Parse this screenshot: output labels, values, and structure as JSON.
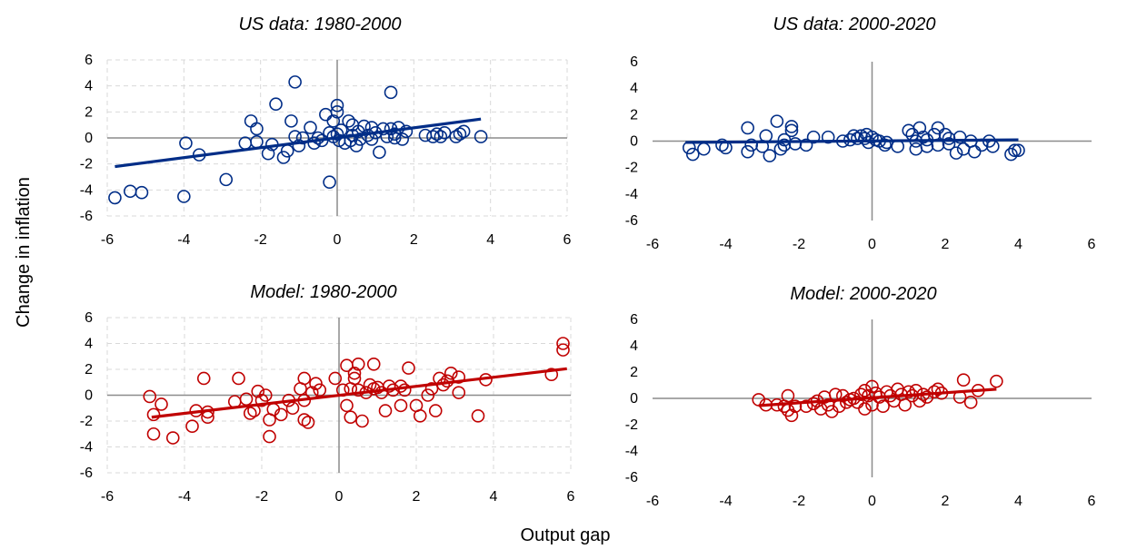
{
  "figure": {
    "ylabel": "Change in inflation",
    "xlabel": "Output gap"
  },
  "chart_data": [
    {
      "type": "scatter",
      "title": "US data: 1980-2000",
      "xlim": [
        -6,
        6
      ],
      "ylim": [
        -6,
        6
      ],
      "xticks": [
        -6,
        -4,
        -2,
        0,
        2,
        4,
        6
      ],
      "yticks": [
        -6,
        -4,
        -2,
        0,
        2,
        4,
        6
      ],
      "grid": true,
      "color": "#002d87",
      "trendline": {
        "x": [
          -5.8,
          3.75
        ],
        "y": [
          -2.2,
          1.45
        ]
      },
      "points": [
        {
          "x": -5.8,
          "y": -4.6
        },
        {
          "x": -5.4,
          "y": -4.1
        },
        {
          "x": -5.1,
          "y": -4.2
        },
        {
          "x": -4.0,
          "y": -4.5
        },
        {
          "x": -3.95,
          "y": -0.4
        },
        {
          "x": -3.6,
          "y": -1.3
        },
        {
          "x": -2.9,
          "y": -3.2
        },
        {
          "x": -2.4,
          "y": -0.4
        },
        {
          "x": -2.25,
          "y": 1.3
        },
        {
          "x": -2.1,
          "y": 0.7
        },
        {
          "x": -2.1,
          "y": -0.3
        },
        {
          "x": -1.8,
          "y": -1.2
        },
        {
          "x": -1.7,
          "y": -0.5
        },
        {
          "x": -1.6,
          "y": 2.6
        },
        {
          "x": -1.4,
          "y": -1.5
        },
        {
          "x": -1.3,
          "y": -1.0
        },
        {
          "x": -1.2,
          "y": 1.3
        },
        {
          "x": -1.1,
          "y": 4.3
        },
        {
          "x": -1.1,
          "y": 0.1
        },
        {
          "x": -1.0,
          "y": -0.6
        },
        {
          "x": -0.9,
          "y": 0.0
        },
        {
          "x": -0.7,
          "y": 0.8
        },
        {
          "x": -0.6,
          "y": -0.4
        },
        {
          "x": -0.5,
          "y": 0.0
        },
        {
          "x": -0.4,
          "y": -0.2
        },
        {
          "x": -0.3,
          "y": 1.8
        },
        {
          "x": -0.2,
          "y": -3.4
        },
        {
          "x": -0.2,
          "y": 0.4
        },
        {
          "x": -0.1,
          "y": 1.3
        },
        {
          "x": -0.1,
          "y": 0.1
        },
        {
          "x": 0.0,
          "y": 2.5
        },
        {
          "x": 0.0,
          "y": 2.0
        },
        {
          "x": 0.0,
          "y": 0.3
        },
        {
          "x": 0.05,
          "y": -0.2
        },
        {
          "x": 0.1,
          "y": 0.6
        },
        {
          "x": 0.2,
          "y": -0.4
        },
        {
          "x": 0.3,
          "y": 1.3
        },
        {
          "x": 0.35,
          "y": -0.2
        },
        {
          "x": 0.4,
          "y": 1.0
        },
        {
          "x": 0.4,
          "y": 0.2
        },
        {
          "x": 0.5,
          "y": -0.6
        },
        {
          "x": 0.55,
          "y": 0.5
        },
        {
          "x": 0.6,
          "y": -0.1
        },
        {
          "x": 0.7,
          "y": 0.9
        },
        {
          "x": 0.8,
          "y": 0.2
        },
        {
          "x": 0.9,
          "y": 0.8
        },
        {
          "x": 0.9,
          "y": -0.1
        },
        {
          "x": 1.0,
          "y": 0.4
        },
        {
          "x": 1.1,
          "y": -1.1
        },
        {
          "x": 1.2,
          "y": 0.7
        },
        {
          "x": 1.3,
          "y": 0.1
        },
        {
          "x": 1.4,
          "y": 3.5
        },
        {
          "x": 1.4,
          "y": 0.7
        },
        {
          "x": 1.5,
          "y": 0.3
        },
        {
          "x": 1.5,
          "y": 0.0
        },
        {
          "x": 1.6,
          "y": 0.8
        },
        {
          "x": 1.7,
          "y": -0.1
        },
        {
          "x": 1.8,
          "y": 0.5
        },
        {
          "x": 2.3,
          "y": 0.2
        },
        {
          "x": 2.5,
          "y": 0.1
        },
        {
          "x": 2.6,
          "y": 0.3
        },
        {
          "x": 2.7,
          "y": 0.1
        },
        {
          "x": 2.8,
          "y": 0.4
        },
        {
          "x": 3.1,
          "y": 0.1
        },
        {
          "x": 3.2,
          "y": 0.3
        },
        {
          "x": 3.3,
          "y": 0.5
        },
        {
          "x": 3.75,
          "y": 0.1
        }
      ]
    },
    {
      "type": "scatter",
      "title": "US data: 2000-2020",
      "xlim": [
        -6,
        6
      ],
      "ylim": [
        -6,
        6
      ],
      "xticks": [
        -6,
        -4,
        -2,
        0,
        2,
        4,
        6
      ],
      "yticks": [
        -6,
        -4,
        -2,
        0,
        2,
        4,
        6
      ],
      "grid": false,
      "color": "#002d87",
      "trendline": {
        "x": [
          -5.1,
          4.0
        ],
        "y": [
          -0.1,
          0.1
        ]
      },
      "points": [
        {
          "x": -5.0,
          "y": -0.5
        },
        {
          "x": -4.9,
          "y": -1.0
        },
        {
          "x": -4.6,
          "y": -0.6
        },
        {
          "x": -4.1,
          "y": -0.3
        },
        {
          "x": -4.0,
          "y": -0.5
        },
        {
          "x": -3.4,
          "y": 1.0
        },
        {
          "x": -3.4,
          "y": -0.8
        },
        {
          "x": -3.3,
          "y": -0.3
        },
        {
          "x": -3.0,
          "y": -0.4
        },
        {
          "x": -2.9,
          "y": 0.4
        },
        {
          "x": -2.8,
          "y": -1.1
        },
        {
          "x": -2.6,
          "y": 1.5
        },
        {
          "x": -2.5,
          "y": -0.6
        },
        {
          "x": -2.4,
          "y": -0.3
        },
        {
          "x": -2.4,
          "y": 0.1
        },
        {
          "x": -2.2,
          "y": 1.1
        },
        {
          "x": -2.2,
          "y": 0.8
        },
        {
          "x": -2.1,
          "y": -0.2
        },
        {
          "x": -1.8,
          "y": -0.3
        },
        {
          "x": -1.6,
          "y": 0.3
        },
        {
          "x": -1.2,
          "y": 0.3
        },
        {
          "x": -0.8,
          "y": 0.0
        },
        {
          "x": -0.6,
          "y": 0.1
        },
        {
          "x": -0.5,
          "y": 0.4
        },
        {
          "x": -0.4,
          "y": 0.2
        },
        {
          "x": -0.3,
          "y": 0.4
        },
        {
          "x": -0.2,
          "y": 0.2
        },
        {
          "x": -0.15,
          "y": 0.5
        },
        {
          "x": -0.1,
          "y": -0.1
        },
        {
          "x": 0.0,
          "y": 0.3
        },
        {
          "x": 0.1,
          "y": 0.1
        },
        {
          "x": 0.2,
          "y": 0.0
        },
        {
          "x": 0.35,
          "y": -0.3
        },
        {
          "x": 0.4,
          "y": -0.1
        },
        {
          "x": 0.7,
          "y": -0.4
        },
        {
          "x": 1.0,
          "y": 0.8
        },
        {
          "x": 1.1,
          "y": 0.5
        },
        {
          "x": 1.2,
          "y": -0.6
        },
        {
          "x": 1.2,
          "y": 0.0
        },
        {
          "x": 1.3,
          "y": 1.0
        },
        {
          "x": 1.4,
          "y": 0.3
        },
        {
          "x": 1.5,
          "y": -0.4
        },
        {
          "x": 1.5,
          "y": 0.1
        },
        {
          "x": 1.7,
          "y": 0.5
        },
        {
          "x": 1.8,
          "y": 1.0
        },
        {
          "x": 1.8,
          "y": -0.3
        },
        {
          "x": 2.0,
          "y": 0.5
        },
        {
          "x": 2.1,
          "y": 0.2
        },
        {
          "x": 2.1,
          "y": -0.2
        },
        {
          "x": 2.3,
          "y": -0.9
        },
        {
          "x": 2.4,
          "y": 0.3
        },
        {
          "x": 2.5,
          "y": -0.6
        },
        {
          "x": 2.7,
          "y": 0.0
        },
        {
          "x": 2.8,
          "y": -0.8
        },
        {
          "x": 3.0,
          "y": -0.3
        },
        {
          "x": 3.2,
          "y": 0.0
        },
        {
          "x": 3.3,
          "y": -0.4
        },
        {
          "x": 3.8,
          "y": -1.0
        },
        {
          "x": 3.9,
          "y": -0.7
        },
        {
          "x": 4.0,
          "y": -0.7
        }
      ]
    },
    {
      "type": "scatter",
      "title": "Model: 1980-2000",
      "xlim": [
        -6,
        6
      ],
      "ylim": [
        -6,
        6
      ],
      "xticks": [
        -6,
        -4,
        -2,
        0,
        2,
        4,
        6
      ],
      "yticks": [
        -6,
        -4,
        -2,
        0,
        2,
        4,
        6
      ],
      "grid": true,
      "color": "#c00000",
      "trendline": {
        "x": [
          -4.85,
          5.9
        ],
        "y": [
          -1.7,
          2.05
        ]
      },
      "points": [
        {
          "x": -4.9,
          "y": -0.1
        },
        {
          "x": -4.8,
          "y": -1.5
        },
        {
          "x": -4.8,
          "y": -3.0
        },
        {
          "x": -4.6,
          "y": -0.7
        },
        {
          "x": -4.3,
          "y": -3.3
        },
        {
          "x": -3.8,
          "y": -2.4
        },
        {
          "x": -3.7,
          "y": -1.2
        },
        {
          "x": -3.5,
          "y": 1.3
        },
        {
          "x": -3.4,
          "y": -1.3
        },
        {
          "x": -3.4,
          "y": -1.7
        },
        {
          "x": -2.7,
          "y": -0.5
        },
        {
          "x": -2.6,
          "y": 1.3
        },
        {
          "x": -2.4,
          "y": -0.3
        },
        {
          "x": -2.3,
          "y": -1.4
        },
        {
          "x": -2.2,
          "y": -1.2
        },
        {
          "x": -2.1,
          "y": 0.3
        },
        {
          "x": -2.0,
          "y": -0.4
        },
        {
          "x": -1.9,
          "y": 0.0
        },
        {
          "x": -1.8,
          "y": -1.9
        },
        {
          "x": -1.8,
          "y": -3.2
        },
        {
          "x": -1.7,
          "y": -1.1
        },
        {
          "x": -1.5,
          "y": -1.5
        },
        {
          "x": -1.3,
          "y": -0.4
        },
        {
          "x": -1.2,
          "y": -1.0
        },
        {
          "x": -1.0,
          "y": 0.5
        },
        {
          "x": -0.9,
          "y": 1.3
        },
        {
          "x": -0.9,
          "y": -0.4
        },
        {
          "x": -0.9,
          "y": -1.9
        },
        {
          "x": -0.8,
          "y": -2.1
        },
        {
          "x": -0.7,
          "y": 0.2
        },
        {
          "x": -0.6,
          "y": 0.9
        },
        {
          "x": -0.5,
          "y": 0.4
        },
        {
          "x": -0.1,
          "y": 1.3
        },
        {
          "x": 0.1,
          "y": 0.4
        },
        {
          "x": 0.2,
          "y": 2.3
        },
        {
          "x": 0.2,
          "y": -0.8
        },
        {
          "x": 0.3,
          "y": 0.5
        },
        {
          "x": 0.3,
          "y": -1.7
        },
        {
          "x": 0.4,
          "y": 1.7
        },
        {
          "x": 0.4,
          "y": 1.3
        },
        {
          "x": 0.5,
          "y": 2.4
        },
        {
          "x": 0.5,
          "y": 0.4
        },
        {
          "x": 0.6,
          "y": -2.0
        },
        {
          "x": 0.7,
          "y": 0.2
        },
        {
          "x": 0.8,
          "y": 0.8
        },
        {
          "x": 0.9,
          "y": 0.5
        },
        {
          "x": 0.9,
          "y": 2.4
        },
        {
          "x": 1.0,
          "y": 0.6
        },
        {
          "x": 1.1,
          "y": 0.2
        },
        {
          "x": 1.2,
          "y": -1.2
        },
        {
          "x": 1.3,
          "y": 0.7
        },
        {
          "x": 1.4,
          "y": 0.4
        },
        {
          "x": 1.6,
          "y": 0.7
        },
        {
          "x": 1.6,
          "y": -0.8
        },
        {
          "x": 1.7,
          "y": 0.4
        },
        {
          "x": 1.8,
          "y": 2.1
        },
        {
          "x": 2.0,
          "y": -0.8
        },
        {
          "x": 2.1,
          "y": -1.6
        },
        {
          "x": 2.3,
          "y": 0.0
        },
        {
          "x": 2.4,
          "y": 0.5
        },
        {
          "x": 2.5,
          "y": -1.2
        },
        {
          "x": 2.6,
          "y": 1.3
        },
        {
          "x": 2.7,
          "y": 0.8
        },
        {
          "x": 2.8,
          "y": 1.1
        },
        {
          "x": 2.9,
          "y": 1.7
        },
        {
          "x": 3.1,
          "y": 1.4
        },
        {
          "x": 3.1,
          "y": 0.2
        },
        {
          "x": 3.6,
          "y": -1.6
        },
        {
          "x": 3.8,
          "y": 1.2
        },
        {
          "x": 5.5,
          "y": 1.6
        },
        {
          "x": 5.8,
          "y": 4.0
        },
        {
          "x": 5.8,
          "y": 3.5
        }
      ]
    },
    {
      "type": "scatter",
      "title": "Model: 2000-2020",
      "xlim": [
        -6,
        6
      ],
      "ylim": [
        -6,
        6
      ],
      "xticks": [
        -6,
        -4,
        -2,
        0,
        2,
        4,
        6
      ],
      "yticks": [
        -6,
        -4,
        -2,
        0,
        2,
        4,
        6
      ],
      "grid": false,
      "color": "#c00000",
      "trendline": {
        "x": [
          -3.1,
          3.4
        ],
        "y": [
          -0.55,
          0.7
        ]
      },
      "points": [
        {
          "x": -3.1,
          "y": -0.1
        },
        {
          "x": -2.9,
          "y": -0.5
        },
        {
          "x": -2.6,
          "y": -0.5
        },
        {
          "x": -2.4,
          "y": -0.6
        },
        {
          "x": -2.3,
          "y": 0.2
        },
        {
          "x": -2.3,
          "y": -0.9
        },
        {
          "x": -2.2,
          "y": -1.3
        },
        {
          "x": -2.1,
          "y": -0.6
        },
        {
          "x": -1.8,
          "y": -0.6
        },
        {
          "x": -1.6,
          "y": -0.4
        },
        {
          "x": -1.5,
          "y": -0.2
        },
        {
          "x": -1.4,
          "y": -0.8
        },
        {
          "x": -1.3,
          "y": 0.1
        },
        {
          "x": -1.2,
          "y": -0.5
        },
        {
          "x": -1.1,
          "y": -1.0
        },
        {
          "x": -1.0,
          "y": 0.3
        },
        {
          "x": -0.9,
          "y": -0.6
        },
        {
          "x": -0.8,
          "y": 0.2
        },
        {
          "x": -0.7,
          "y": -0.3
        },
        {
          "x": -0.6,
          "y": -0.1
        },
        {
          "x": -0.5,
          "y": 0.0
        },
        {
          "x": -0.4,
          "y": -0.3
        },
        {
          "x": -0.3,
          "y": 0.3
        },
        {
          "x": -0.2,
          "y": 0.6
        },
        {
          "x": -0.2,
          "y": -0.8
        },
        {
          "x": -0.1,
          "y": 0.2
        },
        {
          "x": 0.0,
          "y": -0.5
        },
        {
          "x": 0.0,
          "y": 0.9
        },
        {
          "x": 0.1,
          "y": 0.4
        },
        {
          "x": 0.2,
          "y": 0.1
        },
        {
          "x": 0.3,
          "y": -0.6
        },
        {
          "x": 0.4,
          "y": 0.5
        },
        {
          "x": 0.5,
          "y": 0.2
        },
        {
          "x": 0.6,
          "y": -0.2
        },
        {
          "x": 0.7,
          "y": 0.7
        },
        {
          "x": 0.8,
          "y": 0.3
        },
        {
          "x": 0.9,
          "y": -0.5
        },
        {
          "x": 1.0,
          "y": 0.5
        },
        {
          "x": 1.1,
          "y": 0.2
        },
        {
          "x": 1.2,
          "y": 0.6
        },
        {
          "x": 1.3,
          "y": -0.2
        },
        {
          "x": 1.4,
          "y": 0.3
        },
        {
          "x": 1.5,
          "y": 0.1
        },
        {
          "x": 1.7,
          "y": 0.5
        },
        {
          "x": 1.8,
          "y": 0.7
        },
        {
          "x": 1.9,
          "y": 0.4
        },
        {
          "x": 2.4,
          "y": 0.1
        },
        {
          "x": 2.5,
          "y": 1.4
        },
        {
          "x": 2.7,
          "y": -0.3
        },
        {
          "x": 2.9,
          "y": 0.6
        },
        {
          "x": 3.4,
          "y": 1.3
        }
      ]
    }
  ]
}
